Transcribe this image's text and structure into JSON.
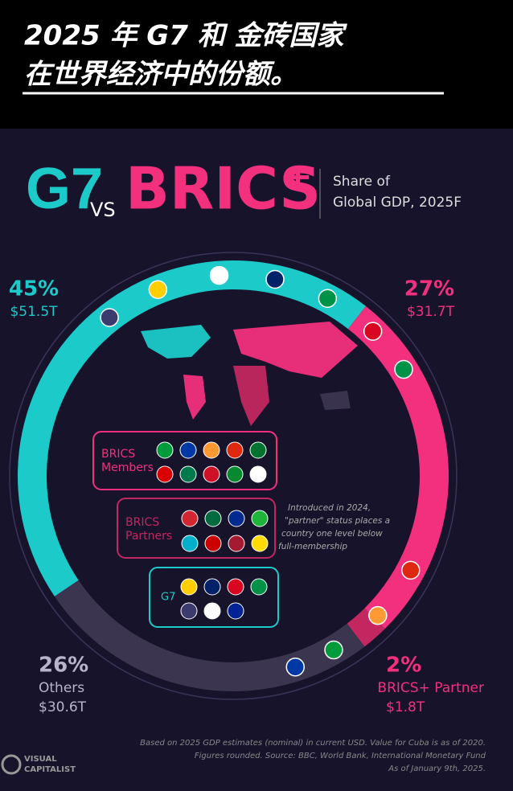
{
  "header": {
    "title_lines": [
      "2025 年 G7 和 金砖国家",
      "在世界经济中的份额。"
    ]
  },
  "heading": {
    "left": "G7",
    "vs": "VS",
    "right": "BRICS",
    "plus": "+",
    "subtitle_lines": [
      "Share of",
      "Global GDP, 2025F"
    ]
  },
  "chart_data": {
    "type": "donut",
    "categories": [
      null,
      null,
      "BRICS+ Partner",
      "Others"
    ],
    "values": [
      45,
      27,
      2,
      26
    ],
    "value_labels": [
      "45%",
      "27%",
      "2%",
      "26%"
    ],
    "amounts": [
      51.5,
      31.7,
      1.8,
      30.6
    ],
    "amount_labels": [
      "$51.5T",
      "$31.7T",
      "$1.8T",
      "$30.6T"
    ],
    "colors": [
      "#1ccaca",
      "#f2307e",
      "#c2285f",
      "#3b3550"
    ]
  },
  "groups": [
    {
      "label_lines": [
        "BRICS",
        "Members"
      ]
    },
    {
      "label_lines": [
        "BRICS",
        "Partners"
      ]
    },
    {
      "label_lines": [
        "G7"
      ]
    }
  ],
  "note_lines": [
    "Introduced in 2024,",
    "\"partner\" status places a",
    "country one level below",
    "full-membership"
  ],
  "source_lines": [
    "Based on 2025 GDP estimates (nominal) in current USD. Value for Cuba is as of 2020.",
    "Figures rounded. Source: BBC, World Bank, International Monetary Fund",
    "As of January 9th, 2025."
  ],
  "logo_lines": [
    "VISUAL",
    "CAPITALIST"
  ]
}
